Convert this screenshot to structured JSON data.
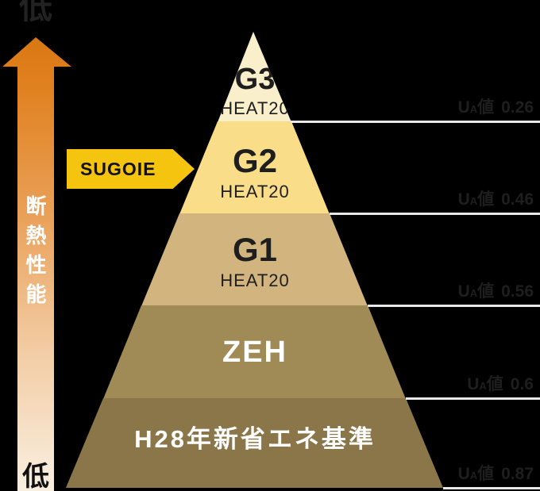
{
  "colors": {
    "background": "#000000",
    "arrow_gradient_top": "#D97712",
    "arrow_gradient_bottom": "#F9EFE1",
    "tag_bg": "#F4C40F",
    "connector_line": "#E8E8E8",
    "ua_text": "#1E1E1E",
    "axis_top_text": "#222222",
    "axis_bottom_text": "#111111"
  },
  "left_axis": {
    "top_label": "低",
    "bottom_label": "低",
    "axis_title": "断熱性能"
  },
  "tag": {
    "label": "SUGOIE"
  },
  "pyramid": {
    "tiers": [
      {
        "name": "G3",
        "sub": "HEAT20",
        "color": "#FAEFCB",
        "text_color": "#1E1E1E"
      },
      {
        "name": "G2",
        "sub": "HEAT20",
        "color": "#F9DD88",
        "text_color": "#1E1E1E"
      },
      {
        "name": "G1",
        "sub": "HEAT20",
        "color": "#D2B47E",
        "text_color": "#1E1E1E"
      },
      {
        "name": "ZEH",
        "sub": "",
        "color": "#A08A55",
        "text_color": "#FFFFFF"
      },
      {
        "name": "H28年新省エネ基準",
        "sub": "",
        "color": "#8B7649",
        "text_color": "#FFFFFF"
      }
    ]
  },
  "ua_labels": [
    {
      "symbol_main": "U",
      "symbol_sub": "A",
      "unit": "値",
      "value": "0.26"
    },
    {
      "symbol_main": "U",
      "symbol_sub": "A",
      "unit": "値",
      "value": "0.46"
    },
    {
      "symbol_main": "U",
      "symbol_sub": "A",
      "unit": "値",
      "value": "0.56"
    },
    {
      "symbol_main": "U",
      "symbol_sub": "A",
      "unit": "値",
      "value": "0.6"
    },
    {
      "symbol_main": "U",
      "symbol_sub": "A",
      "unit": "値",
      "value": "0.87"
    }
  ]
}
